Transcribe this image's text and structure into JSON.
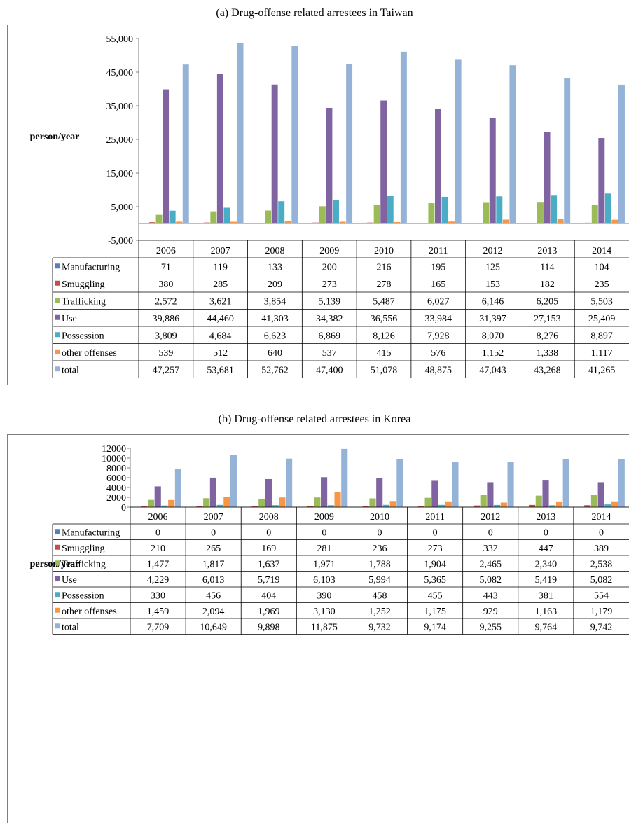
{
  "chart_data": [
    {
      "type": "bar",
      "title": "(a) Drug-offense related arrestees in Taiwan",
      "xlabel": "",
      "ylabel": "person/year",
      "ylim": [
        -5000,
        55000
      ],
      "yticks": [
        "-5,000",
        "5,000",
        "15,000",
        "25,000",
        "35,000",
        "45,000",
        "55,000"
      ],
      "yticks_values": [
        -5000,
        5000,
        15000,
        25000,
        35000,
        45000,
        55000
      ],
      "grid": false,
      "legend": "data-table",
      "categories": [
        "2006",
        "2007",
        "2008",
        "2009",
        "2010",
        "2011",
        "2012",
        "2013",
        "2014"
      ],
      "series": [
        {
          "name": "Manufacturing",
          "color": "#4f81bd",
          "values": [
            71,
            119,
            133,
            200,
            216,
            195,
            125,
            114,
            104
          ],
          "labels": [
            "71",
            "119",
            "133",
            "200",
            "216",
            "195",
            "125",
            "114",
            "104"
          ]
        },
        {
          "name": "Smuggling",
          "color": "#c0504d",
          "values": [
            380,
            285,
            209,
            273,
            278,
            165,
            153,
            182,
            235
          ],
          "labels": [
            "380",
            "285",
            "209",
            "273",
            "278",
            "165",
            "153",
            "182",
            "235"
          ]
        },
        {
          "name": "Trafficking",
          "color": "#9bbb59",
          "values": [
            2572,
            3621,
            3854,
            5139,
            5487,
            6027,
            6146,
            6205,
            5503
          ],
          "labels": [
            "2,572",
            "3,621",
            "3,854",
            "5,139",
            "5,487",
            "6,027",
            "6,146",
            "6,205",
            "5,503"
          ]
        },
        {
          "name": "Use",
          "color": "#8064a2",
          "values": [
            39886,
            44460,
            41303,
            34382,
            36556,
            33984,
            31397,
            27153,
            25409
          ],
          "labels": [
            "39,886",
            "44,460",
            "41,303",
            "34,382",
            "36,556",
            "33,984",
            "31,397",
            "27,153",
            "25,409"
          ]
        },
        {
          "name": "Possession",
          "color": "#4bacc6",
          "values": [
            3809,
            4684,
            6623,
            6869,
            8126,
            7928,
            8070,
            8276,
            8897
          ],
          "labels": [
            "3,809",
            "4,684",
            "6,623",
            "6,869",
            "8,126",
            "7,928",
            "8,070",
            "8,276",
            "8,897"
          ]
        },
        {
          "name": "other offenses",
          "color": "#f79646",
          "values": [
            539,
            512,
            640,
            537,
            415,
            576,
            1152,
            1338,
            1117
          ],
          "labels": [
            "539",
            "512",
            "640",
            "537",
            "415",
            "576",
            "1,152",
            "1,338",
            "1,117"
          ]
        },
        {
          "name": "total",
          "color": "#95b3d7",
          "values": [
            47257,
            53681,
            52762,
            47400,
            51078,
            48875,
            47043,
            43268,
            41265
          ],
          "labels": [
            "47,257",
            "53,681",
            "52,762",
            "47,400",
            "51,078",
            "48,875",
            "47,043",
            "43,268",
            "41,265"
          ]
        }
      ]
    },
    {
      "type": "bar",
      "title": "(b) Drug-offense related arrestees in Korea",
      "xlabel": "",
      "ylabel": "person/year",
      "ylim": [
        0,
        12000
      ],
      "yticks": [
        "0",
        "2000",
        "4000",
        "6000",
        "8000",
        "10000",
        "12000"
      ],
      "yticks_values": [
        0,
        2000,
        4000,
        6000,
        8000,
        10000,
        12000
      ],
      "grid": false,
      "legend": "data-table",
      "categories": [
        "2006",
        "2007",
        "2008",
        "2009",
        "2010",
        "2011",
        "2012",
        "2013",
        "2014"
      ],
      "series": [
        {
          "name": "Manufacturing",
          "color": "#4f81bd",
          "values": [
            0,
            0,
            0,
            0,
            0,
            0,
            0,
            0,
            0
          ],
          "labels": [
            "0",
            "0",
            "0",
            "0",
            "0",
            "0",
            "0",
            "0",
            "0"
          ]
        },
        {
          "name": "Smuggling",
          "color": "#c0504d",
          "values": [
            210,
            265,
            169,
            281,
            236,
            273,
            332,
            447,
            389
          ],
          "labels": [
            "210",
            "265",
            "169",
            "281",
            "236",
            "273",
            "332",
            "447",
            "389"
          ]
        },
        {
          "name": "Trafficking",
          "color": "#9bbb59",
          "values": [
            1477,
            1817,
            1637,
            1971,
            1788,
            1904,
            2465,
            2340,
            2538
          ],
          "labels": [
            "1,477",
            "1,817",
            "1,637",
            "1,971",
            "1,788",
            "1,904",
            "2,465",
            "2,340",
            "2,538"
          ]
        },
        {
          "name": "Use",
          "color": "#8064a2",
          "values": [
            4229,
            6013,
            5719,
            6103,
            5994,
            5365,
            5082,
            5419,
            5082
          ],
          "labels": [
            "4,229",
            "6,013",
            "5,719",
            "6,103",
            "5,994",
            "5,365",
            "5,082",
            "5,419",
            "5,082"
          ]
        },
        {
          "name": "Possession",
          "color": "#4bacc6",
          "values": [
            330,
            456,
            404,
            390,
            458,
            455,
            443,
            381,
            554
          ],
          "labels": [
            "330",
            "456",
            "404",
            "390",
            "458",
            "455",
            "443",
            "381",
            "554"
          ]
        },
        {
          "name": "other offenses",
          "color": "#f79646",
          "values": [
            1459,
            2094,
            1969,
            3130,
            1252,
            1175,
            929,
            1163,
            1179
          ],
          "labels": [
            "1,459",
            "2,094",
            "1,969",
            "3,130",
            "1,252",
            "1,175",
            "929",
            "1,163",
            "1,179"
          ]
        },
        {
          "name": "total",
          "color": "#95b3d7",
          "values": [
            7709,
            10649,
            9898,
            11875,
            9732,
            9174,
            9255,
            9764,
            9742
          ],
          "labels": [
            "7,709",
            "10,649",
            "9,898",
            "11,875",
            "9,732",
            "9,174",
            "9,255",
            "9,764",
            "9,742"
          ]
        }
      ]
    }
  ]
}
